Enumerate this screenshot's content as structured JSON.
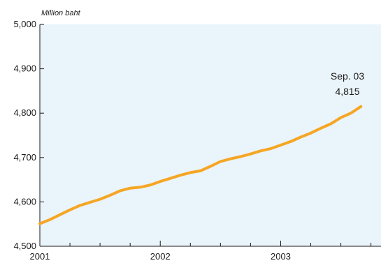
{
  "chart_data": {
    "type": "line",
    "ylabel": "Million baht",
    "ylim": [
      4500,
      5000
    ],
    "yticks": [
      4500,
      4600,
      4700,
      4800,
      4900,
      5000
    ],
    "ytick_labels": [
      "4,500",
      "4,600",
      "4,700",
      "4,800",
      "4,900",
      "5,000"
    ],
    "xlim": [
      "2001-01",
      "2003-11"
    ],
    "xticks": [
      "2001-01",
      "2002-01",
      "2003-01"
    ],
    "xtick_labels": [
      "2001",
      "2002",
      "2003"
    ],
    "grid": false,
    "colors": {
      "plot_background": "#eaf4fb",
      "line": "#f5a623",
      "axis": "#1a1a1a"
    },
    "series": [
      {
        "x": [
          "2001-01",
          "2001-02",
          "2001-03",
          "2001-04",
          "2001-05",
          "2001-06",
          "2001-07",
          "2001-08",
          "2001-09",
          "2001-10",
          "2001-11",
          "2001-12",
          "2002-01",
          "2002-02",
          "2002-03",
          "2002-04",
          "2002-05",
          "2002-06",
          "2002-07",
          "2002-08",
          "2002-09",
          "2002-10",
          "2002-11",
          "2002-12",
          "2003-01",
          "2003-02",
          "2003-03",
          "2003-04",
          "2003-05",
          "2003-06",
          "2003-07",
          "2003-08",
          "2003-09"
        ],
        "values": [
          4551,
          4560,
          4571,
          4582,
          4592,
          4599,
          4606,
          4615,
          4625,
          4631,
          4633,
          4638,
          4646,
          4653,
          4660,
          4666,
          4670,
          4680,
          4691,
          4697,
          4702,
          4708,
          4715,
          4720,
          4728,
          4736,
          4746,
          4755,
          4766,
          4776,
          4790,
          4800,
          4815
        ]
      }
    ],
    "annotations": [
      {
        "text": "Sep. 03",
        "x": "2003-09",
        "y": 4815
      },
      {
        "text": "4,815",
        "x": "2003-09",
        "y": 4815
      }
    ]
  }
}
